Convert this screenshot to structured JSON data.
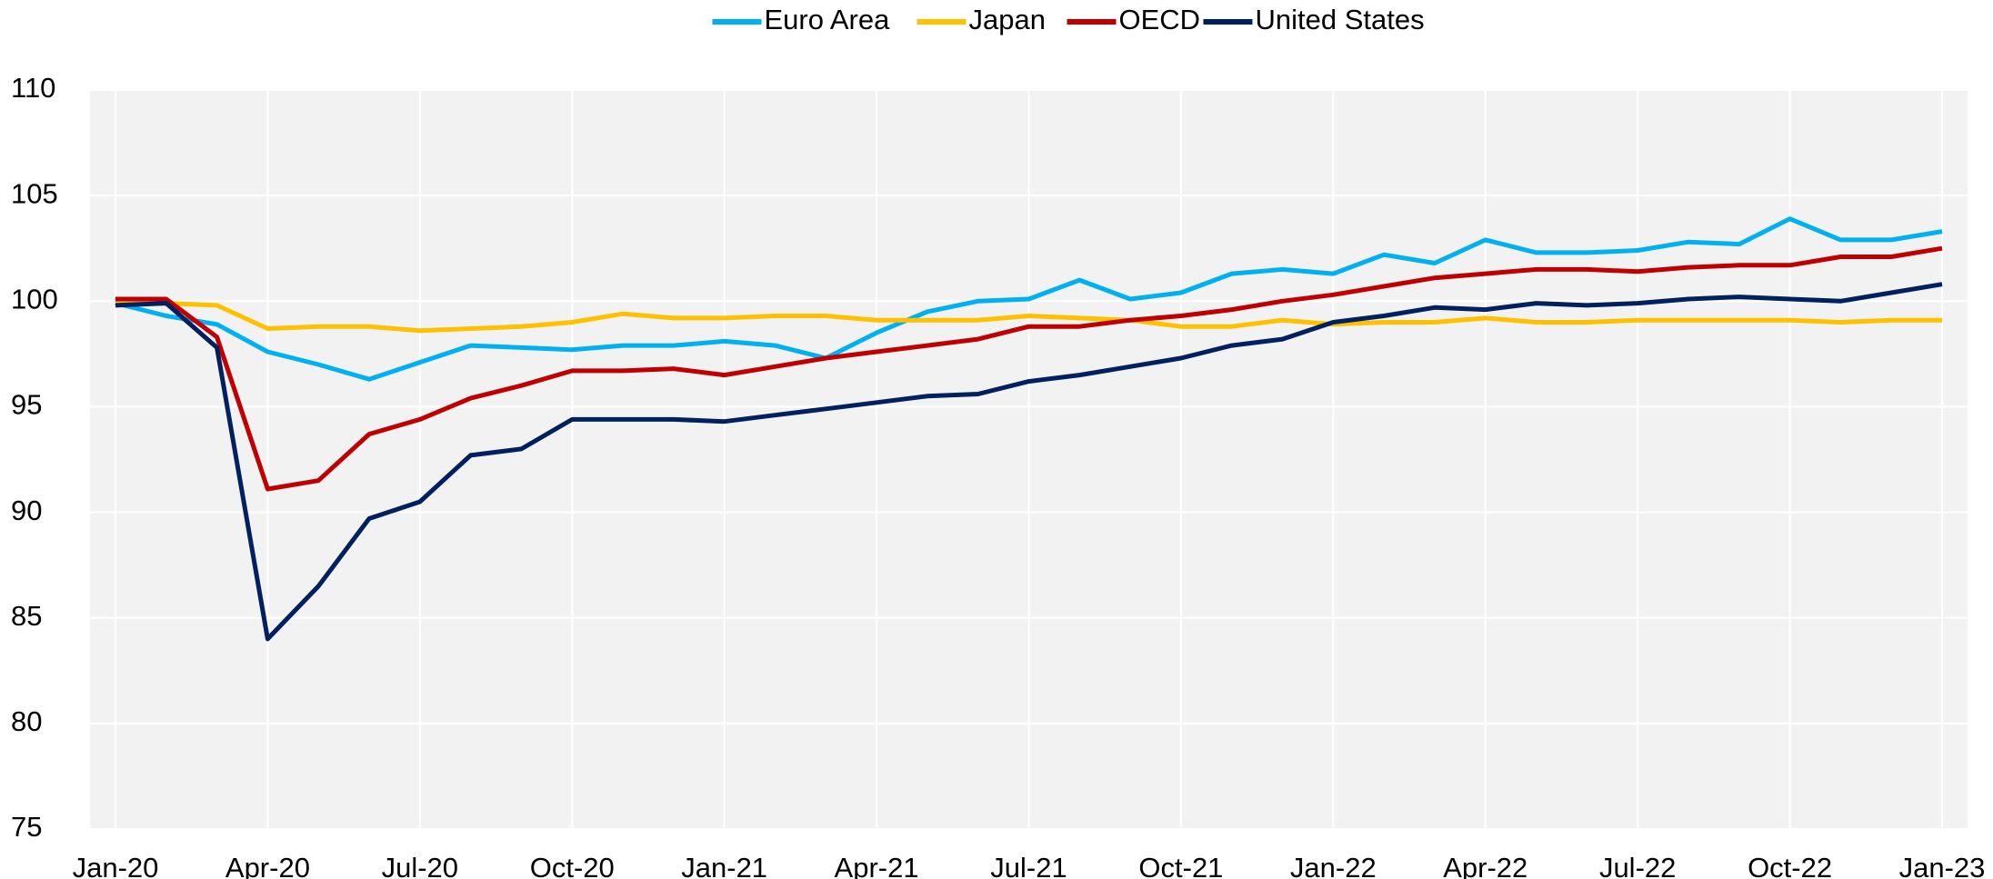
{
  "chart_data": {
    "type": "line",
    "categories": [
      "Jan-20",
      null,
      null,
      "Apr-20",
      null,
      null,
      "Jul-20",
      null,
      null,
      "Oct-20",
      null,
      null,
      "Jan-21",
      null,
      null,
      "Apr-21",
      null,
      null,
      "Jul-21",
      null,
      null,
      "Oct-21",
      null,
      null,
      "Jan-22",
      null,
      null,
      "Apr-22",
      null,
      null,
      "Jul-22",
      null,
      null,
      "Oct-22",
      null,
      null,
      "Jan-23"
    ],
    "series": [
      {
        "name": "Euro Area",
        "color": "#00b0f0",
        "values": [
          99.9,
          99.3,
          98.9,
          97.6,
          97.0,
          96.3,
          97.1,
          97.9,
          97.8,
          97.7,
          97.9,
          97.9,
          98.1,
          97.9,
          97.3,
          98.5,
          99.5,
          100.0,
          100.1,
          101.0,
          100.1,
          100.4,
          101.3,
          101.5,
          101.3,
          102.2,
          101.8,
          102.9,
          102.3,
          102.3,
          102.4,
          102.8,
          102.7,
          103.9,
          102.9,
          102.9,
          103.3
        ]
      },
      {
        "name": "Japan",
        "color": "#ffc000",
        "values": [
          99.9,
          99.9,
          99.8,
          98.7,
          98.8,
          98.8,
          98.6,
          98.7,
          98.8,
          99.0,
          99.4,
          99.2,
          99.2,
          99.3,
          99.3,
          99.1,
          99.1,
          99.1,
          99.3,
          99.2,
          99.1,
          98.8,
          98.8,
          99.1,
          98.9,
          99.0,
          99.0,
          99.2,
          99.0,
          99.0,
          99.1,
          99.1,
          99.1,
          99.1,
          99.0,
          99.1,
          99.1
        ]
      },
      {
        "name": "OECD",
        "color": "#c00000",
        "values": [
          100.1,
          100.1,
          98.3,
          91.1,
          91.5,
          93.7,
          94.4,
          95.4,
          96.0,
          96.7,
          96.7,
          96.8,
          96.5,
          96.9,
          97.3,
          97.6,
          97.9,
          98.2,
          98.8,
          98.8,
          99.1,
          99.3,
          99.6,
          100.0,
          100.3,
          100.7,
          101.1,
          101.3,
          101.5,
          101.5,
          101.4,
          101.6,
          101.7,
          101.7,
          102.1,
          102.1,
          102.5
        ]
      },
      {
        "name": "United States",
        "color": "#002060",
        "values": [
          99.8,
          99.9,
          97.8,
          84.0,
          86.5,
          89.7,
          90.5,
          92.7,
          93.0,
          94.4,
          94.4,
          94.4,
          94.3,
          94.6,
          94.9,
          95.2,
          95.5,
          95.6,
          96.2,
          96.5,
          96.9,
          97.3,
          97.9,
          98.2,
          99.0,
          99.3,
          99.7,
          99.6,
          99.9,
          99.8,
          99.9,
          100.1,
          100.2,
          100.1,
          100.0,
          100.4,
          100.8
        ]
      }
    ],
    "ylim": [
      75,
      110
    ],
    "yticks": [
      75,
      80,
      85,
      90,
      95,
      100,
      105,
      110
    ],
    "grid": true
  }
}
